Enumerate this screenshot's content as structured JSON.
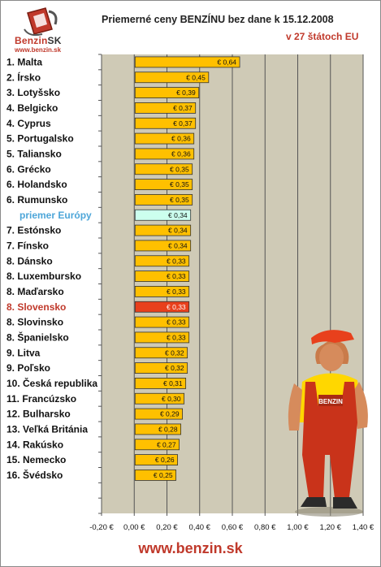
{
  "header": {
    "logo_text": "Benzin",
    "logo_text_sk": "SK",
    "logo_url": "www.benzin.sk",
    "title": "Priemerné ceny BENZÍNU bez dane k 15.12.2008",
    "subtitle": "v 27 štátoch EU"
  },
  "footer": {
    "url": "www.benzin.sk"
  },
  "colors": {
    "bar": "#ffc000",
    "europe_bar": "#ccffee",
    "slovakia_bar": "#e8401c",
    "europe_label": "#4da6d9",
    "slovakia_label": "#c0392b",
    "plot_bg": "#cfcab6"
  },
  "chart_data": {
    "type": "bar",
    "orientation": "horizontal",
    "categories": [
      "1. Malta",
      "2. Írsko",
      "3. Lotyšsko",
      "4. Belgicko",
      "4. Cyprus",
      "5. Portugalsko",
      "5. Taliansko",
      "6. Grécko",
      "6. Holandsko",
      "6. Rumunsko",
      "priemer Európy",
      "7. Estónsko",
      "7. Fínsko",
      "8. Dánsko",
      "8. Luxembursko",
      "8. Maďarsko",
      "8. Slovensko",
      "8. Slovinsko",
      "8. Španielsko",
      "9. Litva",
      "9. Poľsko",
      "10. Česká republika",
      "11. Francúzsko",
      "12. Bulharsko",
      "13. Veľká Británia",
      "14. Rakúsko",
      "15. Nemecko",
      "16. Švédsko"
    ],
    "values": [
      0.64,
      0.45,
      0.39,
      0.37,
      0.37,
      0.36,
      0.36,
      0.35,
      0.35,
      0.35,
      0.34,
      0.34,
      0.34,
      0.33,
      0.33,
      0.33,
      0.33,
      0.33,
      0.33,
      0.32,
      0.32,
      0.31,
      0.3,
      0.29,
      0.28,
      0.27,
      0.26,
      0.25
    ],
    "value_labels": [
      "€ 0,64",
      "€ 0,45",
      "€ 0,39",
      "€ 0,37",
      "€ 0,37",
      "€ 0,36",
      "€ 0,36",
      "€ 0,35",
      "€ 0,35",
      "€ 0,35",
      "€ 0,34",
      "€ 0,34",
      "€ 0,34",
      "€ 0,33",
      "€ 0,33",
      "€ 0,33",
      "€ 0,33",
      "€ 0,33",
      "€ 0,33",
      "€ 0,32",
      "€ 0,32",
      "€ 0,31",
      "€ 0,30",
      "€ 0,29",
      "€ 0,28",
      "€ 0,27",
      "€ 0,26",
      "€ 0,25"
    ],
    "highlight": {
      "priemer Európy": "europe",
      "8. Slovensko": "slovakia"
    },
    "empty_rows_after": 2,
    "xlim": [
      -0.2,
      1.4
    ],
    "xticks": [
      -0.2,
      0.0,
      0.2,
      0.4,
      0.6,
      0.8,
      1.0,
      1.2,
      1.4
    ],
    "xtick_labels": [
      "-0,20 €",
      "0,00 €",
      "0,20 €",
      "0,40 €",
      "0,60 €",
      "0,80 €",
      "1,00 €",
      "1,20 €",
      "1,40 €"
    ],
    "grid": "vertical",
    "title": "Priemerné ceny BENZÍNU bez dane k 15.12.2008",
    "subtitle": "v 27 štátoch EU",
    "xlabel": "",
    "ylabel": ""
  }
}
